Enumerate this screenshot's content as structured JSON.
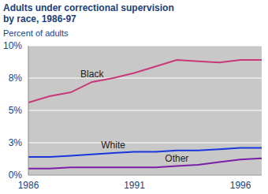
{
  "chart_data": {
    "type": "line",
    "title": "Adults under correctional supervision by race, 1986-97",
    "y_label": "Percent of adults",
    "x": [
      1986,
      1987,
      1988,
      1989,
      1990,
      1991,
      1992,
      1993,
      1994,
      1995,
      1996,
      1997
    ],
    "series": [
      {
        "name": "Black",
        "color": "#c8387a",
        "values": [
          5.6,
          6.1,
          6.4,
          7.2,
          7.5,
          7.9,
          8.4,
          8.9,
          8.8,
          8.7,
          8.9,
          8.9
        ]
      },
      {
        "name": "White",
        "color": "#1a36d8",
        "values": [
          1.4,
          1.4,
          1.5,
          1.6,
          1.7,
          1.8,
          1.8,
          1.9,
          1.9,
          2.0,
          2.1,
          2.1
        ]
      },
      {
        "name": "Other",
        "color": "#7a1fa8",
        "values": [
          0.5,
          0.5,
          0.6,
          0.6,
          0.6,
          0.6,
          0.6,
          0.7,
          0.8,
          1.0,
          1.2,
          1.3
        ]
      }
    ],
    "xlim": [
      1986,
      1997
    ],
    "xticks": [
      1986,
      1991,
      1996
    ],
    "ylim": [
      0,
      10
    ],
    "yticks": [
      {
        "value": 0,
        "label": "0%"
      },
      {
        "value": 2.5,
        "label": "3%"
      },
      {
        "value": 5,
        "label": "5%"
      },
      {
        "value": 7.5,
        "label": "8%"
      },
      {
        "value": 10,
        "label": "10%"
      }
    ],
    "grid": true
  }
}
